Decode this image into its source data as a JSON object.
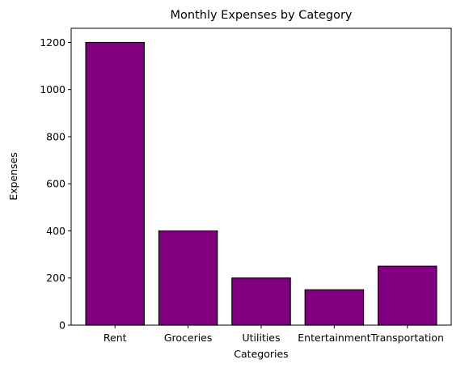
{
  "chart_data": {
    "type": "bar",
    "title": "Monthly Expenses by Category",
    "xlabel": "Categories",
    "ylabel": "Expenses",
    "categories": [
      "Rent",
      "Groceries",
      "Utilities",
      "Entertainment",
      "Transportation"
    ],
    "values": [
      1200,
      400,
      200,
      150,
      250
    ],
    "ylim": [
      0,
      1260
    ],
    "yticks": [
      0,
      200,
      400,
      600,
      800,
      1000,
      1200
    ],
    "grid": false,
    "bar_color": "#800080",
    "bar_edge_color": "#000000"
  }
}
